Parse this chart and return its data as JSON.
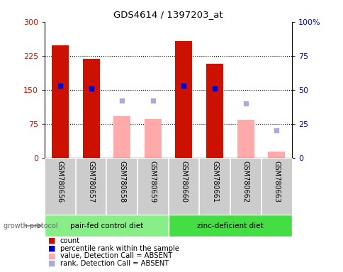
{
  "title": "GDS4614 / 1397203_at",
  "samples": [
    "GSM780656",
    "GSM780657",
    "GSM780658",
    "GSM780659",
    "GSM780660",
    "GSM780661",
    "GSM780662",
    "GSM780663"
  ],
  "count_values": [
    248,
    218,
    null,
    null,
    258,
    208,
    null,
    null
  ],
  "count_color": "#cc1100",
  "percentile_values": [
    53,
    51,
    null,
    null,
    53,
    51,
    null,
    null
  ],
  "percentile_color": "#0000cc",
  "absent_value_values": [
    null,
    null,
    92,
    85,
    null,
    null,
    84,
    13
  ],
  "absent_value_color": "#ffaaaa",
  "absent_rank_values": [
    null,
    null,
    42,
    42,
    null,
    null,
    40,
    20
  ],
  "absent_rank_color": "#aaaadd",
  "ylim_left": [
    0,
    300
  ],
  "ylim_right": [
    0,
    100
  ],
  "yticks_left": [
    0,
    75,
    150,
    225,
    300
  ],
  "yticks_right": [
    0,
    25,
    50,
    75,
    100
  ],
  "ytick_labels_left": [
    "0",
    "75",
    "150",
    "225",
    "300"
  ],
  "ytick_labels_right": [
    "0",
    "25",
    "50",
    "75",
    "100%"
  ],
  "group1_label": "pair-fed control diet",
  "group2_label": "zinc-deficient diet",
  "group1_indices": [
    0,
    1,
    2,
    3
  ],
  "group2_indices": [
    4,
    5,
    6,
    7
  ],
  "group1_color": "#88ee88",
  "group2_color": "#44dd44",
  "protocol_label": "growth protocol",
  "sample_bg_color": "#cccccc",
  "bar_width": 0.55,
  "legend_items": [
    {
      "label": "count",
      "color": "#cc1100"
    },
    {
      "label": "percentile rank within the sample",
      "color": "#0000cc"
    },
    {
      "label": "value, Detection Call = ABSENT",
      "color": "#ffaaaa"
    },
    {
      "label": "rank, Detection Call = ABSENT",
      "color": "#aaaadd"
    }
  ]
}
